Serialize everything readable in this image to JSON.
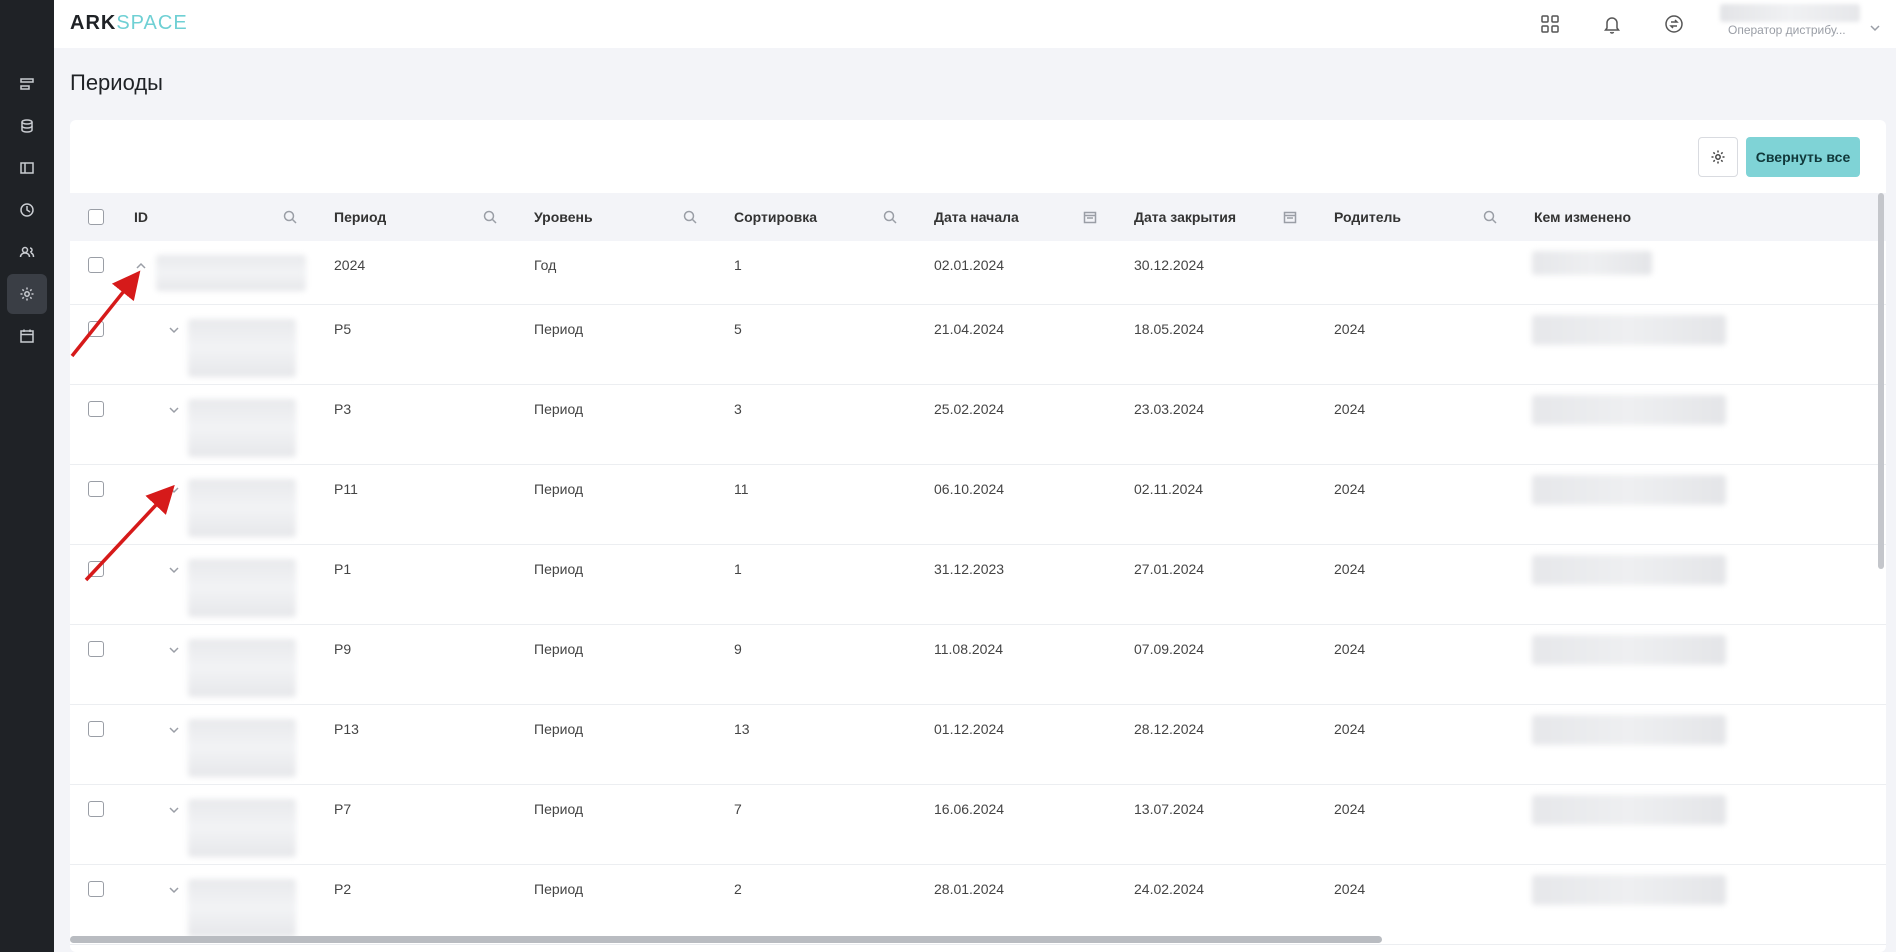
{
  "app": {
    "logo_part1": "ARK",
    "logo_part2": "SPACE",
    "user_role": "Оператор дистрибу..."
  },
  "page": {
    "title": "Периоды"
  },
  "toolbar": {
    "collapse_all_label": "Свернуть все"
  },
  "table": {
    "columns": [
      {
        "key": "id",
        "label": "ID",
        "filter": "search"
      },
      {
        "key": "period",
        "label": "Период",
        "filter": "search"
      },
      {
        "key": "level",
        "label": "Уровень",
        "filter": "search"
      },
      {
        "key": "sort",
        "label": "Сортировка",
        "filter": "search"
      },
      {
        "key": "start",
        "label": "Дата начала",
        "filter": "calendar"
      },
      {
        "key": "end",
        "label": "Дата закрытия",
        "filter": "calendar"
      },
      {
        "key": "parent",
        "label": "Родитель",
        "filter": "search"
      },
      {
        "key": "modified_by",
        "label": "Кем изменено",
        "filter": "none"
      }
    ],
    "rows": [
      {
        "period": "2024",
        "level": "Год",
        "sort": "1",
        "start": "02.01.2024",
        "end": "30.12.2024",
        "parent": "",
        "expanded": true
      },
      {
        "period": "P5",
        "level": "Период",
        "sort": "5",
        "start": "21.04.2024",
        "end": "18.05.2024",
        "parent": "2024",
        "expanded": false
      },
      {
        "period": "P3",
        "level": "Период",
        "sort": "3",
        "start": "25.02.2024",
        "end": "23.03.2024",
        "parent": "2024",
        "expanded": false
      },
      {
        "period": "P11",
        "level": "Период",
        "sort": "11",
        "start": "06.10.2024",
        "end": "02.11.2024",
        "parent": "2024",
        "expanded": false
      },
      {
        "period": "P1",
        "level": "Период",
        "sort": "1",
        "start": "31.12.2023",
        "end": "27.01.2024",
        "parent": "2024",
        "expanded": false
      },
      {
        "period": "P9",
        "level": "Период",
        "sort": "9",
        "start": "11.08.2024",
        "end": "07.09.2024",
        "parent": "2024",
        "expanded": false
      },
      {
        "period": "P13",
        "level": "Период",
        "sort": "13",
        "start": "01.12.2024",
        "end": "28.12.2024",
        "parent": "2024",
        "expanded": false
      },
      {
        "period": "P7",
        "level": "Период",
        "sort": "7",
        "start": "16.06.2024",
        "end": "13.07.2024",
        "parent": "2024",
        "expanded": false
      },
      {
        "period": "P2",
        "level": "Период",
        "sort": "2",
        "start": "28.01.2024",
        "end": "24.02.2024",
        "parent": "2024",
        "expanded": false
      }
    ]
  },
  "icons": {
    "sidebar": [
      "list-icon",
      "database-icon",
      "layout-icon",
      "clock-icon",
      "users-icon",
      "gear-icon",
      "calendar-icon"
    ],
    "topbar": [
      "grid-icon",
      "bell-icon",
      "exchange-icon"
    ]
  },
  "colors": {
    "accent": "#7fd3d6",
    "sidebar_bg": "#1f2226",
    "annotation_arrow": "#d61a1a"
  }
}
